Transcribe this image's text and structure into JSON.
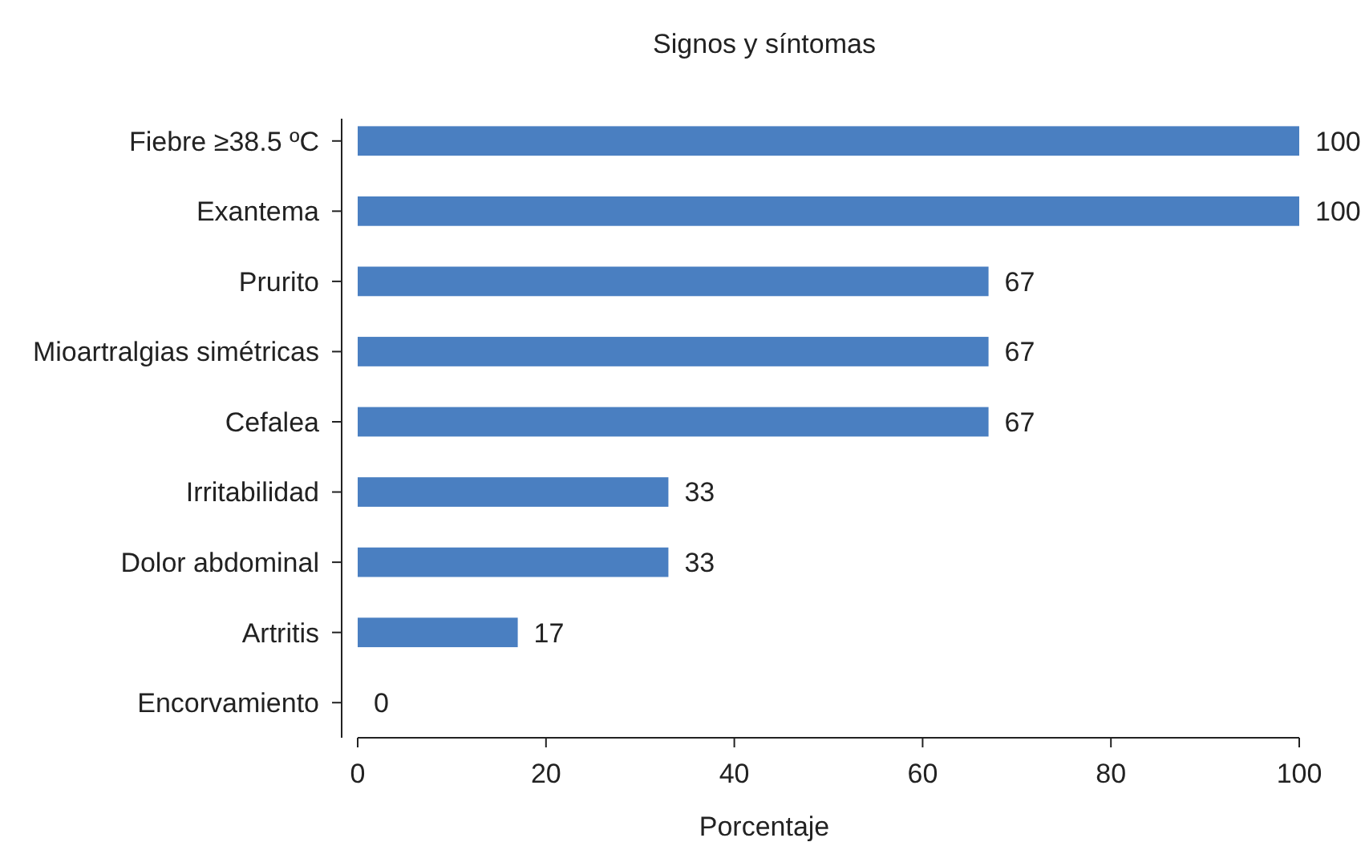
{
  "chart_data": {
    "type": "bar",
    "orientation": "horizontal",
    "title": "Signos y síntomas",
    "xlabel": "Porcentaje",
    "categories": [
      "Fiebre ≥38.5 ºC",
      "Exantema",
      "Prurito",
      "Mioartralgias simétricas",
      "Cefalea",
      "Irritabilidad",
      "Dolor abdominal",
      "Artritis",
      "Encorvamiento"
    ],
    "values": [
      100,
      100,
      67,
      67,
      67,
      33,
      33,
      17,
      0
    ],
    "color": "#4a7fc1",
    "xlim": [
      0,
      100
    ],
    "xticks": [
      0,
      20,
      40,
      60,
      80,
      100
    ],
    "data_labels": true
  }
}
